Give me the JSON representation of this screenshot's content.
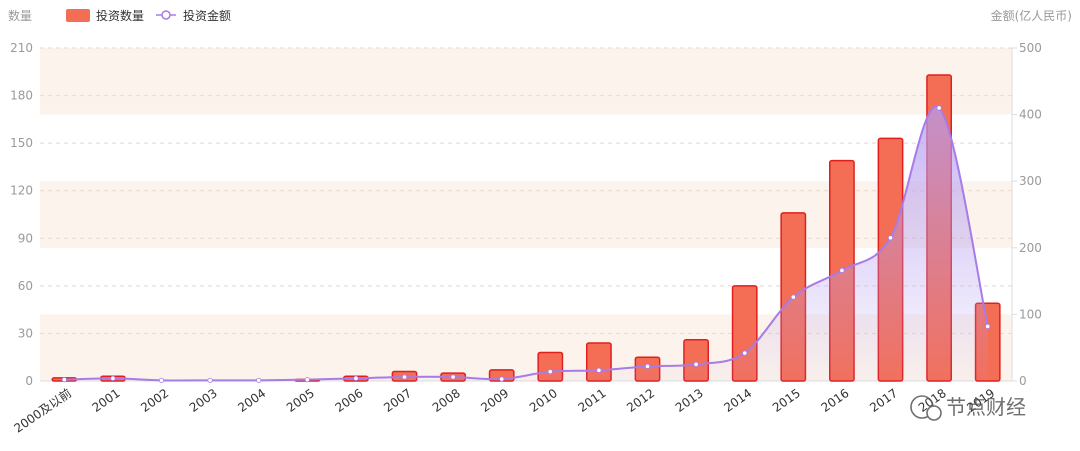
{
  "chart_data": {
    "type": "bar+line",
    "categories": [
      "2000及以前",
      "2001",
      "2002",
      "2003",
      "2004",
      "2005",
      "2006",
      "2007",
      "2008",
      "2009",
      "2010",
      "2011",
      "2012",
      "2013",
      "2014",
      "2015",
      "2016",
      "2017",
      "2018",
      "2019"
    ],
    "series": [
      {
        "name": "投资数量",
        "type": "bar",
        "axis": "left",
        "values": [
          2,
          3,
          0,
          0,
          0,
          1,
          3,
          6,
          5,
          7,
          18,
          24,
          15,
          26,
          60,
          106,
          139,
          153,
          193,
          49
        ]
      },
      {
        "name": "投资金额",
        "type": "line",
        "axis": "right",
        "smooth": true,
        "area": true,
        "values": [
          2,
          4,
          1,
          1,
          1,
          2,
          4,
          6,
          6,
          3,
          14,
          16,
          22,
          25,
          42,
          126,
          166,
          215,
          410,
          82
        ]
      }
    ],
    "ylabel_left": "数量",
    "ylabel_right": "金额(亿人民币)",
    "ylim_left": [
      0,
      210
    ],
    "yticks_left": [
      0,
      30,
      60,
      90,
      120,
      150,
      180,
      210
    ],
    "ylim_right": [
      0,
      500
    ],
    "yticks_right": [
      0,
      100,
      200,
      300,
      400,
      500
    ],
    "grid": true,
    "legend_position": "top-left",
    "colors": {
      "bar_fill": "#f46e56",
      "bar_stroke": "#e11f1f",
      "line": "#a77be8",
      "area": "#b49cf0",
      "band": "#fcf4ec"
    }
  },
  "watermark": {
    "text": "节点财经"
  }
}
